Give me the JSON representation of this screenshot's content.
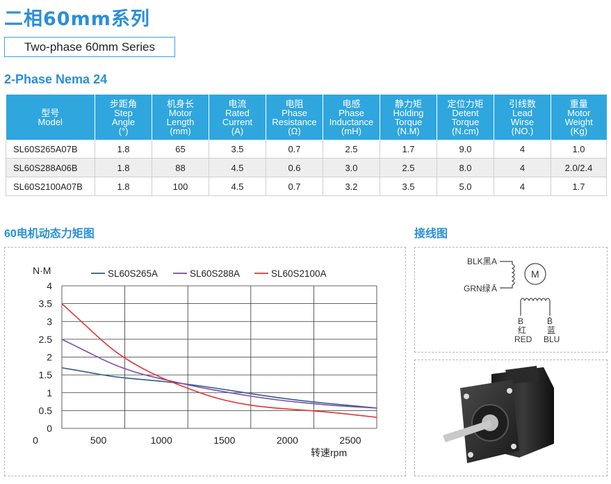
{
  "page_title": "二相60mm系列",
  "series_label": "Two-phase 60mm Series",
  "subtitle": "2-Phase Nema 24",
  "table": {
    "headers": [
      {
        "zh": "型号",
        "en": [
          "Model"
        ]
      },
      {
        "zh": "步距角",
        "en": [
          "Step",
          "Angle",
          "(°)"
        ]
      },
      {
        "zh": "机身长",
        "en": [
          "Motor",
          "Length",
          "(mm)"
        ]
      },
      {
        "zh": "电流",
        "en": [
          "Rated",
          "Current",
          "(A)"
        ]
      },
      {
        "zh": "电阻",
        "en": [
          "Phase",
          "Resistance",
          "(Ω)"
        ]
      },
      {
        "zh": "电感",
        "en": [
          "Phase",
          "Inductance",
          "(mH)"
        ]
      },
      {
        "zh": "静力矩",
        "en": [
          "Holding",
          "Torque",
          "(N.M)"
        ]
      },
      {
        "zh": "定位力矩",
        "en": [
          "Detent",
          "Torque",
          "(N.cm)"
        ]
      },
      {
        "zh": "引线数",
        "en": [
          "Lead",
          "Wirse",
          "(NO.)"
        ]
      },
      {
        "zh": "重量",
        "en": [
          "Motor",
          "Weight",
          "(Kg)"
        ]
      }
    ],
    "rows": [
      [
        "SL60S265A07B",
        "1.8",
        "65",
        "3.5",
        "0.7",
        "2.5",
        "1.7",
        "9.0",
        "4",
        "1.0"
      ],
      [
        "SL60S288A06B",
        "1.8",
        "88",
        "4.5",
        "0.6",
        "3.0",
        "2.5",
        "8.0",
        "4",
        "2.0/2.4"
      ],
      [
        "SL60S2100A07B",
        "1.8",
        "100",
        "4.5",
        "0.7",
        "3.2",
        "3.5",
        "5.0",
        "4",
        "1.7"
      ]
    ]
  },
  "chart_section_title": "60电机动态力矩图",
  "wiring_section_title": "接线图",
  "wiring": {
    "blk_label": "BLK黑",
    "grn_label": "GRN绿",
    "a_label": "A",
    "a_bar_label": "Ā",
    "motor_label": "M",
    "b_label": "B",
    "b_bar_label": "B̄",
    "red_zh": "红",
    "red_en": "RED",
    "blu_zh": "蓝",
    "blu_en": "BLU"
  },
  "chart_data": {
    "type": "line",
    "title": "",
    "ylabel": "N·M",
    "xlabel": "转速rpm",
    "xlim": [
      0,
      2500
    ],
    "ylim": [
      0,
      4
    ],
    "xticks": [
      0,
      500,
      1000,
      1500,
      2000,
      2500
    ],
    "yticks": [
      0,
      0.5,
      1,
      1.5,
      2,
      2.5,
      3,
      3.5,
      4
    ],
    "grid": true,
    "legend": "top",
    "series": [
      {
        "name": "SL60S265A",
        "color": "#2e5c8a",
        "x": [
          0,
          200,
          400,
          600,
          800,
          1000,
          1200,
          1400,
          1600,
          1800,
          2000,
          2200,
          2500
        ],
        "y": [
          1.7,
          1.58,
          1.45,
          1.38,
          1.32,
          1.24,
          1.14,
          1.03,
          0.92,
          0.82,
          0.74,
          0.67,
          0.57
        ]
      },
      {
        "name": "SL60S288A",
        "color": "#7a4da6",
        "x": [
          0,
          200,
          400,
          600,
          800,
          1000,
          1200,
          1400,
          1600,
          1800,
          2000,
          2200,
          2500
        ],
        "y": [
          2.5,
          2.15,
          1.8,
          1.55,
          1.38,
          1.22,
          1.08,
          0.96,
          0.85,
          0.76,
          0.69,
          0.63,
          0.57
        ]
      },
      {
        "name": "SL60S2100A",
        "color": "#e23232",
        "x": [
          0,
          200,
          400,
          600,
          800,
          1000,
          1200,
          1400,
          1600,
          1800,
          2000,
          2200,
          2500
        ],
        "y": [
          3.5,
          2.85,
          2.2,
          1.75,
          1.4,
          1.12,
          0.87,
          0.7,
          0.6,
          0.54,
          0.49,
          0.43,
          0.31
        ]
      }
    ]
  }
}
